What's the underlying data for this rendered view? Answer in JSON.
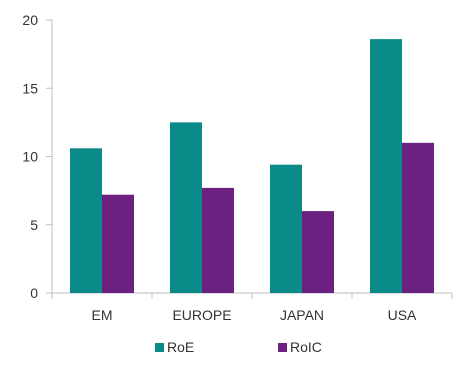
{
  "chart_data": {
    "type": "bar",
    "categories": [
      "EM",
      "EUROPE",
      "JAPAN",
      "USA"
    ],
    "series": [
      {
        "name": "RoE",
        "values": [
          10.6,
          12.5,
          9.4,
          18.6
        ],
        "color": "#0b8a8a"
      },
      {
        "name": "RoIC",
        "values": [
          7.2,
          7.7,
          6.0,
          11.0
        ],
        "color": "#6c2181"
      }
    ],
    "ylim": [
      0,
      20
    ],
    "yticks": [
      0,
      5,
      10,
      15,
      20
    ],
    "grid": false,
    "legend_position": "bottom-center",
    "axis_color": "#bfbfbf"
  }
}
